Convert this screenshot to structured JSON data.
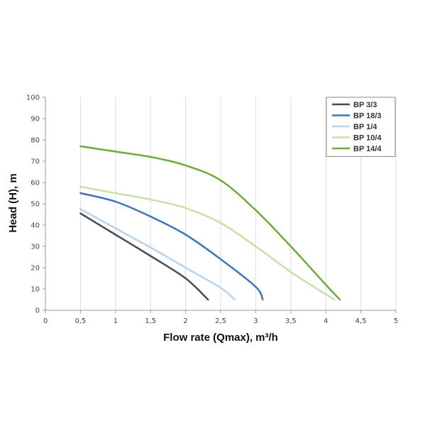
{
  "chart_data": {
    "type": "line",
    "xlabel": "Flow rate (Qmax), m³/h",
    "ylabel": "Head (H), m",
    "xlim": [
      0,
      5
    ],
    "ylim": [
      0,
      100
    ],
    "x_ticks": [
      "0",
      "0,5",
      "1",
      "1,5",
      "2",
      "2,5",
      "3",
      "3,5",
      "4",
      "4,5",
      "5"
    ],
    "y_ticks": [
      "0",
      "10",
      "20",
      "30",
      "40",
      "50",
      "60",
      "70",
      "80",
      "90",
      "100"
    ],
    "grid": "vertical",
    "legend_position": "top-right",
    "series": [
      {
        "name": "BP 3/3",
        "color": "#4d4d4d",
        "points": [
          [
            0.5,
            45.5
          ],
          [
            1.0,
            35.5
          ],
          [
            1.5,
            25.5
          ],
          [
            2.0,
            15.0
          ],
          [
            2.32,
            5.0
          ]
        ]
      },
      {
        "name": "BP 18/3",
        "color": "#3a76b8",
        "points": [
          [
            0.5,
            55.0
          ],
          [
            1.0,
            51.0
          ],
          [
            1.5,
            44.0
          ],
          [
            2.0,
            35.5
          ],
          [
            2.5,
            24.0
          ],
          [
            3.0,
            11.0
          ],
          [
            3.1,
            5.0
          ]
        ]
      },
      {
        "name": "BP 1/4",
        "color": "#b6d4ee",
        "points": [
          [
            0.5,
            47.5
          ],
          [
            1.0,
            38.5
          ],
          [
            1.5,
            29.5
          ],
          [
            2.0,
            20.0
          ],
          [
            2.5,
            10.5
          ],
          [
            2.7,
            5.0
          ]
        ]
      },
      {
        "name": "BP 10/4",
        "color": "#c8e0a8",
        "points": [
          [
            0.5,
            58.0
          ],
          [
            1.0,
            55.0
          ],
          [
            1.5,
            52.0
          ],
          [
            2.0,
            48.0
          ],
          [
            2.5,
            41.0
          ],
          [
            3.0,
            30.0
          ],
          [
            3.5,
            18.0
          ],
          [
            4.0,
            7.5
          ],
          [
            4.12,
            5.0
          ]
        ]
      },
      {
        "name": "BP 14/4",
        "color": "#6aab3a",
        "points": [
          [
            0.5,
            77.0
          ],
          [
            1.0,
            74.5
          ],
          [
            1.5,
            72.0
          ],
          [
            2.0,
            68.0
          ],
          [
            2.5,
            61.0
          ],
          [
            3.0,
            47.0
          ],
          [
            3.5,
            30.0
          ],
          [
            4.0,
            12.0
          ],
          [
            4.2,
            5.0
          ]
        ]
      }
    ]
  }
}
